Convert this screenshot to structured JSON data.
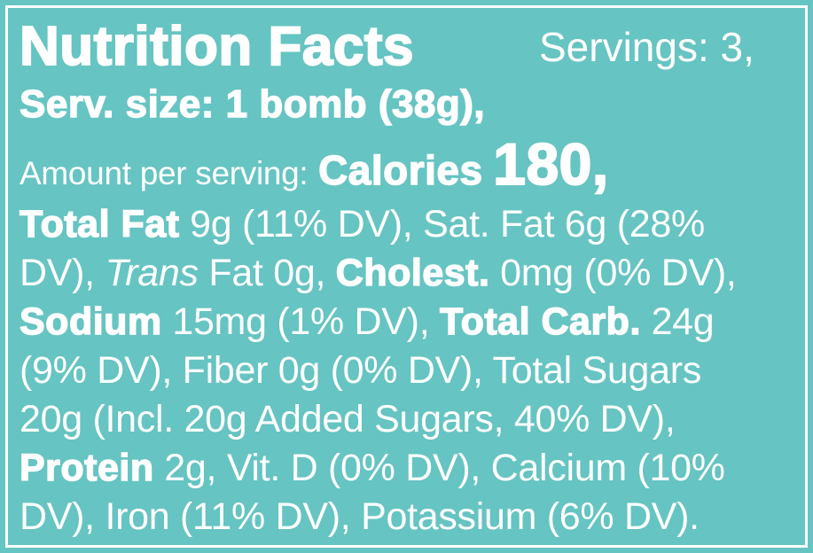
{
  "label": {
    "title": "Nutrition Facts",
    "servings": "Servings: 3,",
    "serving_size": "Serv. size: 1 bomb (38g),",
    "amount_per_serving": "Amount per serving:",
    "calories_label": "Calories",
    "calories_value": "180,",
    "lines": [
      [
        "Total Fat",
        "9g (11% DV), Sat. Fat 6g (28%"
      ],
      [
        "DV),",
        "Trans",
        "Fat 0g,",
        "Cholest.",
        "0mg (0% DV),"
      ],
      [
        "Sodium",
        "15mg (1% DV),",
        "Total Carb.",
        "24g"
      ],
      [
        "(9% DV), Fiber 0g (0% DV), Total Sugars"
      ],
      [
        "20g (Incl. 20g Added Sugars, 40% DV),"
      ],
      [
        "Protein",
        "2g, Vit. D (0% DV), Calcium (10%"
      ],
      [
        "DV), Iron (11% DV), Potassium (6% DV)."
      ]
    ]
  }
}
